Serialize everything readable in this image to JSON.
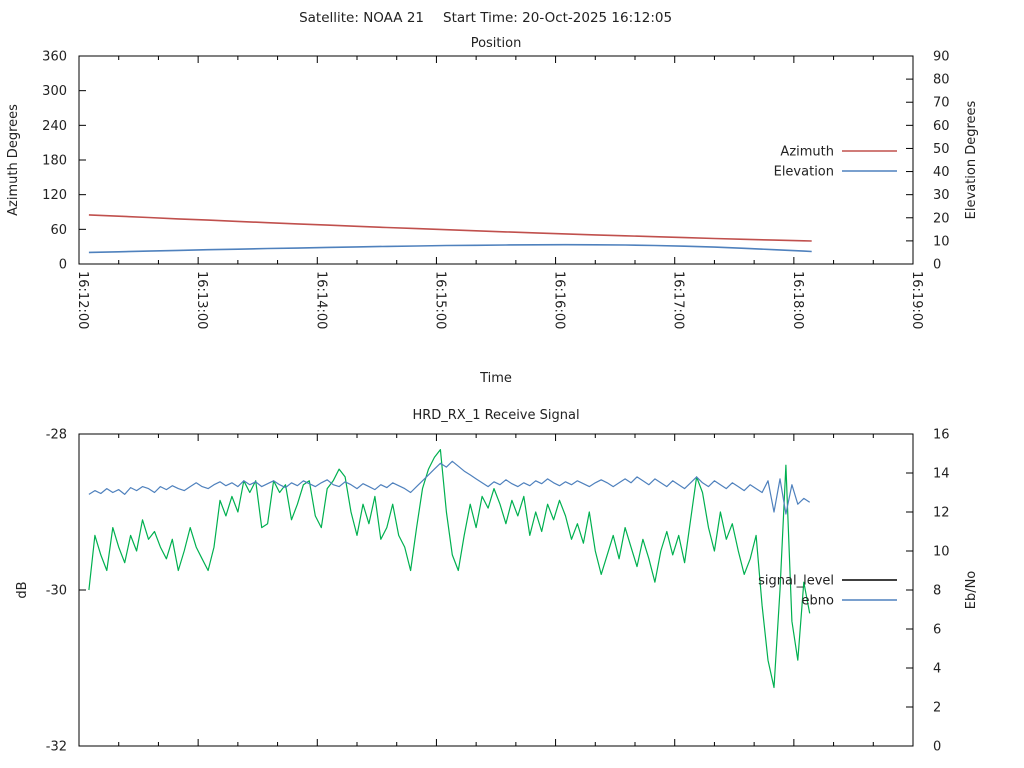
{
  "window": {
    "title_left": "Satellite: NOAA 21",
    "title_right": "Start Time: 20-Oct-2025 16:12:05",
    "background": "#ffffff"
  },
  "chart_data": [
    {
      "type": "line",
      "name": "position",
      "title": "Position",
      "xlabel": "Time",
      "ylabel": "Azimuth Degrees",
      "y2label": "Elevation Degrees",
      "x_axis": {
        "range_seconds": [
          0,
          420
        ],
        "major_tick_seconds": 60,
        "minor_tick_seconds": 20,
        "tick_labels": [
          "16:12:00",
          "16:13:00",
          "16:14:00",
          "16:15:00",
          "16:16:00",
          "16:17:00",
          "16:18:00",
          "16:19:00"
        ]
      },
      "y_axis": {
        "range": [
          0,
          360
        ],
        "tick_step": 60,
        "ticks": [
          0,
          60,
          120,
          180,
          240,
          300,
          360
        ]
      },
      "y2_axis": {
        "range": [
          0,
          90
        ],
        "tick_step": 10,
        "ticks": [
          0,
          10,
          20,
          30,
          40,
          50,
          60,
          70,
          80,
          90
        ]
      },
      "legend": {
        "position": "inside-right",
        "entries": [
          {
            "label": "Azimuth",
            "color": "#c0504d"
          },
          {
            "label": "Elevation",
            "color": "#4f81bd"
          }
        ]
      },
      "series": [
        {
          "name": "azimuth",
          "axis": "y",
          "color": "#c0504d",
          "t_seconds": [
            5,
            20,
            35,
            50,
            65,
            80,
            95,
            110,
            125,
            140,
            155,
            170,
            185,
            200,
            215,
            230,
            245,
            260,
            275,
            290,
            305,
            320,
            335,
            350,
            365,
            369
          ],
          "values": [
            85.0,
            82.7,
            80.4,
            78.1,
            75.9,
            73.7,
            71.5,
            69.4,
            67.3,
            65.2,
            63.2,
            61.2,
            59.3,
            57.4,
            55.6,
            53.8,
            52.1,
            50.4,
            48.8,
            47.2,
            45.7,
            44.2,
            42.8,
            41.4,
            40.1,
            39.8
          ]
        },
        {
          "name": "elevation",
          "axis": "y2",
          "color": "#4f81bd",
          "t_seconds": [
            5,
            20,
            35,
            50,
            65,
            80,
            95,
            110,
            125,
            140,
            155,
            170,
            185,
            200,
            215,
            230,
            245,
            260,
            275,
            290,
            305,
            320,
            335,
            350,
            365,
            369
          ],
          "values": [
            5.0,
            5.3,
            5.6,
            5.9,
            6.2,
            6.4,
            6.7,
            6.9,
            7.2,
            7.4,
            7.6,
            7.8,
            8.0,
            8.1,
            8.2,
            8.3,
            8.35,
            8.3,
            8.2,
            8.0,
            7.7,
            7.3,
            6.8,
            6.2,
            5.6,
            5.4
          ]
        }
      ]
    },
    {
      "type": "line",
      "name": "receive-signal",
      "title": "HRD_RX_1 Receive Signal",
      "xlabel": "",
      "ylabel": "dB",
      "y2label": "Eb/No",
      "x_axis": {
        "range_seconds": [
          0,
          420
        ],
        "major_tick_seconds": 60,
        "minor_tick_seconds": 20,
        "tick_labels": []
      },
      "y_axis": {
        "range": [
          -32,
          -28
        ],
        "tick_step": 2,
        "ticks": [
          -32,
          -30,
          -28
        ]
      },
      "y2_axis": {
        "range": [
          0,
          16
        ],
        "tick_step": 2,
        "ticks": [
          0,
          2,
          4,
          6,
          8,
          10,
          12,
          14,
          16
        ]
      },
      "legend": {
        "position": "inside-right",
        "entries": [
          {
            "label": "signal_level",
            "color": "#000000"
          },
          {
            "label": "ebno",
            "color": "#4f81bd"
          }
        ]
      },
      "series": [
        {
          "name": "signal_level",
          "axis": "y",
          "color": "#00b050",
          "t_start_seconds": 5,
          "t_step_seconds": 3,
          "values": [
            -30.0,
            -29.3,
            -29.55,
            -29.75,
            -29.2,
            -29.45,
            -29.65,
            -29.3,
            -29.5,
            -29.1,
            -29.35,
            -29.25,
            -29.45,
            -29.6,
            -29.35,
            -29.75,
            -29.5,
            -29.2,
            -29.45,
            -29.6,
            -29.75,
            -29.45,
            -28.85,
            -29.05,
            -28.8,
            -29.0,
            -28.6,
            -28.75,
            -28.6,
            -29.2,
            -29.15,
            -28.6,
            -28.75,
            -28.65,
            -29.1,
            -28.9,
            -28.65,
            -28.6,
            -29.05,
            -29.2,
            -28.7,
            -28.6,
            -28.45,
            -28.55,
            -29.0,
            -29.3,
            -28.9,
            -29.15,
            -28.8,
            -29.35,
            -29.2,
            -28.9,
            -29.3,
            -29.45,
            -29.75,
            -29.2,
            -28.7,
            -28.45,
            -28.3,
            -28.2,
            -29.0,
            -29.55,
            -29.75,
            -29.3,
            -28.9,
            -29.2,
            -28.8,
            -28.95,
            -28.7,
            -28.9,
            -29.15,
            -28.85,
            -29.05,
            -28.8,
            -29.3,
            -29.0,
            -29.25,
            -28.9,
            -29.1,
            -28.85,
            -29.05,
            -29.35,
            -29.15,
            -29.4,
            -29.0,
            -29.5,
            -29.8,
            -29.55,
            -29.3,
            -29.6,
            -29.2,
            -29.45,
            -29.7,
            -29.35,
            -29.6,
            -29.9,
            -29.5,
            -29.25,
            -29.55,
            -29.3,
            -29.65,
            -29.1,
            -28.55,
            -28.75,
            -29.2,
            -29.5,
            -29.0,
            -29.35,
            -29.15,
            -29.5,
            -29.8,
            -29.6,
            -29.3,
            -30.2,
            -30.9,
            -31.25,
            -30.0,
            -28.4,
            -30.4,
            -30.9,
            -29.9,
            -30.3
          ]
        },
        {
          "name": "ebno",
          "axis": "y2",
          "color": "#4f81bd",
          "t_start_seconds": 5,
          "t_step_seconds": 3,
          "values": [
            12.9,
            13.1,
            12.95,
            13.2,
            13.0,
            13.15,
            12.9,
            13.25,
            13.1,
            13.3,
            13.2,
            13.0,
            13.3,
            13.15,
            13.35,
            13.2,
            13.1,
            13.3,
            13.5,
            13.3,
            13.2,
            13.4,
            13.55,
            13.35,
            13.5,
            13.3,
            13.6,
            13.4,
            13.55,
            13.3,
            13.45,
            13.6,
            13.4,
            13.25,
            13.5,
            13.35,
            13.6,
            13.45,
            13.3,
            13.5,
            13.65,
            13.4,
            13.3,
            13.55,
            13.4,
            13.2,
            13.45,
            13.3,
            13.15,
            13.4,
            13.25,
            13.5,
            13.35,
            13.2,
            13.0,
            13.3,
            13.6,
            13.9,
            14.2,
            14.5,
            14.3,
            14.6,
            14.35,
            14.1,
            13.9,
            13.7,
            13.5,
            13.3,
            13.55,
            13.4,
            13.65,
            13.45,
            13.3,
            13.5,
            13.35,
            13.6,
            13.45,
            13.7,
            13.5,
            13.35,
            13.55,
            13.4,
            13.6,
            13.45,
            13.3,
            13.5,
            13.65,
            13.5,
            13.3,
            13.5,
            13.7,
            13.5,
            13.8,
            13.6,
            13.4,
            13.7,
            13.5,
            13.3,
            13.6,
            13.4,
            13.2,
            13.5,
            13.8,
            13.5,
            13.3,
            13.6,
            13.4,
            13.2,
            13.5,
            13.3,
            13.1,
            13.4,
            13.2,
            13.0,
            13.6,
            12.0,
            13.7,
            11.9,
            13.4,
            12.4,
            12.7,
            12.5
          ]
        }
      ]
    }
  ]
}
